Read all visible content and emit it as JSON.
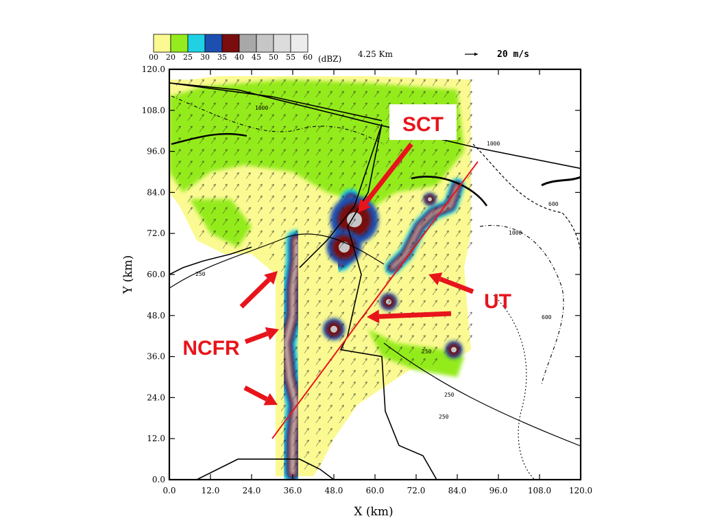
{
  "chart_data": {
    "type": "heatmap",
    "xlabel": "X (km)",
    "ylabel": "Y (km)",
    "xlim": [
      0,
      120
    ],
    "ylim": [
      0,
      120
    ],
    "xticks": [
      "0.0",
      "12.0",
      "24.0",
      "36.0",
      "48.0",
      "60.0",
      "72.0",
      "84.0",
      "96.0",
      "108.0",
      "120.0"
    ],
    "yticks": [
      "0.0",
      "12.0",
      "24.0",
      "36.0",
      "48.0",
      "60.0",
      "72.0",
      "84.0",
      "96.0",
      "108.0",
      "120.0"
    ],
    "colorbar": {
      "ticks": [
        "00",
        "20",
        "25",
        "30",
        "35",
        "40",
        "45",
        "50",
        "55",
        "60"
      ],
      "unit": "(dBZ)",
      "colors": [
        "#fbfa92",
        "#94eb1e",
        "#1fd1e3",
        "#1c4fb0",
        "#7a0d0d",
        "#a8a8a8",
        "#c6c6c6",
        "#dcdcdc",
        "#ececec"
      ]
    },
    "height_label": "4.25 Km",
    "vector_scale_label": "20 m/s",
    "contour_labels": [
      "250",
      "600",
      "1000"
    ],
    "annotations": [
      {
        "text": "SCT",
        "x": 60,
        "y": 88
      },
      {
        "text": "UT",
        "x": 82,
        "y": 48
      },
      {
        "text": "NCFR",
        "x": 22,
        "y": 40
      }
    ],
    "features": [
      {
        "name": "NCFR",
        "points": [
          [
            36,
            2
          ],
          [
            36,
            12
          ],
          [
            37,
            22
          ],
          [
            35,
            30
          ],
          [
            34,
            40
          ],
          [
            36,
            48
          ],
          [
            36,
            56
          ],
          [
            37,
            64
          ],
          [
            37,
            70
          ]
        ]
      },
      {
        "name": "SCT",
        "points": [
          [
            50,
            64
          ],
          [
            52,
            72
          ],
          [
            54,
            78
          ],
          [
            53,
            82
          ]
        ]
      },
      {
        "name": "UT",
        "points": [
          [
            65,
            62
          ],
          [
            69,
            66
          ],
          [
            73,
            74
          ],
          [
            77,
            78
          ],
          [
            82,
            80
          ],
          [
            84,
            86
          ]
        ]
      }
    ],
    "line": {
      "x": [
        30,
        90
      ],
      "y": [
        12,
        93
      ]
    }
  }
}
